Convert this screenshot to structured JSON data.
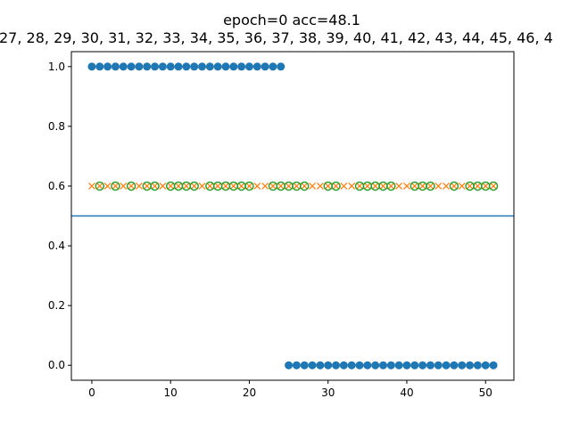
{
  "chart_data": {
    "type": "scatter",
    "title": "epoch=0 acc=48.1",
    "subtitle": "27, 28, 29, 30, 31, 32, 33, 34, 35, 36, 37, 38, 39, 40, 41, 42, 43, 44, 45, 46, 4",
    "xlim": [
      -2.6,
      53.6
    ],
    "ylim": [
      -0.05,
      1.05
    ],
    "xticks": [
      0,
      10,
      20,
      30,
      40,
      50
    ],
    "yticks": [
      "0.0",
      "0.2",
      "0.4",
      "0.6",
      "0.8",
      "1.0"
    ],
    "grid": false,
    "hline": {
      "y": 0.5,
      "color": "#1f77b4"
    },
    "series": [
      {
        "marker": "circle-filled",
        "color": "#1f77b4",
        "x": [
          0,
          1,
          2,
          3,
          4,
          5,
          6,
          7,
          8,
          9,
          10,
          11,
          12,
          13,
          14,
          15,
          16,
          17,
          18,
          19,
          20,
          21,
          22,
          23,
          24,
          25,
          26,
          27,
          28,
          29,
          30,
          31,
          32,
          33,
          34,
          35,
          36,
          37,
          38,
          39,
          40,
          41,
          42,
          43,
          44,
          45,
          46,
          47,
          48,
          49,
          50,
          51
        ],
        "y": [
          1,
          1,
          1,
          1,
          1,
          1,
          1,
          1,
          1,
          1,
          1,
          1,
          1,
          1,
          1,
          1,
          1,
          1,
          1,
          1,
          1,
          1,
          1,
          1,
          1,
          0,
          0,
          0,
          0,
          0,
          0,
          0,
          0,
          0,
          0,
          0,
          0,
          0,
          0,
          0,
          0,
          0,
          0,
          0,
          0,
          0,
          0,
          0,
          0,
          0,
          0,
          0
        ]
      },
      {
        "marker": "x",
        "color": "#ff7f0e",
        "x": [
          0,
          1,
          2,
          3,
          4,
          5,
          6,
          7,
          8,
          9,
          10,
          11,
          12,
          13,
          14,
          15,
          16,
          17,
          18,
          19,
          20,
          21,
          22,
          23,
          24,
          25,
          26,
          27,
          28,
          29,
          30,
          31,
          32,
          33,
          34,
          35,
          36,
          37,
          38,
          39,
          40,
          41,
          42,
          43,
          44,
          45,
          46,
          47,
          48,
          49,
          50,
          51
        ],
        "y": 0.6
      },
      {
        "marker": "circle-open",
        "color": "#2ca02c",
        "x": [
          1,
          3,
          5,
          7,
          8,
          10,
          11,
          12,
          13,
          15,
          16,
          17,
          18,
          19,
          20,
          23,
          24,
          25,
          26,
          27,
          30,
          31,
          34,
          35,
          36,
          37,
          38,
          41,
          42,
          43,
          46,
          48,
          49,
          50,
          51
        ],
        "y": 0.6
      }
    ]
  }
}
